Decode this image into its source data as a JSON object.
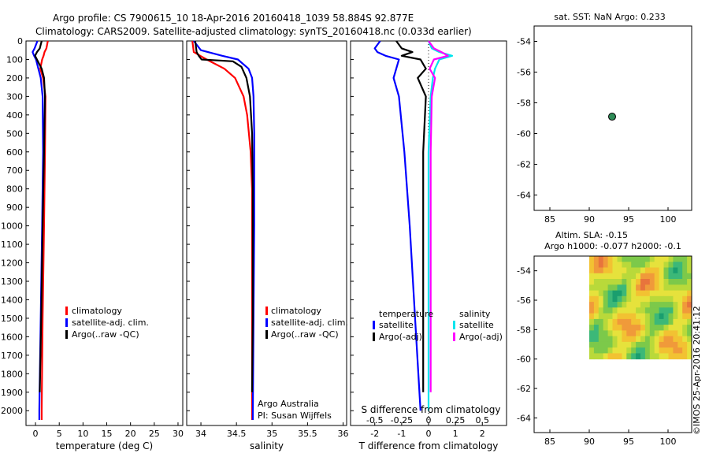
{
  "header": {
    "line1": "Argo profile: CS 7900615_10 18-Apr-2016 20160418_1039 58.884S 92.877E",
    "line2": "Climatology: CARS2009. Satellite-adjusted climatology: synTS_20160418.nc (0.033d earlier)"
  },
  "colors": {
    "climatology": "#ff0000",
    "satellite": "#0000ff",
    "argo": "#000000",
    "sst_satellite": "#00e5ee",
    "salinity_argo": "#ff00ff",
    "marker": "#2e8b57"
  },
  "footer": {
    "attribution": "Argo Australia",
    "pi": "PI: Susan Wijffels",
    "stamp": "©IMOS 25-Apr-2016 20:41:12"
  },
  "chart_data": [
    {
      "id": "temperature",
      "type": "line",
      "xlabel": "temperature (deg C)",
      "ylabel": "",
      "xlim": [
        -2,
        31
      ],
      "ylim": [
        2080,
        0
      ],
      "xticks": [
        0,
        5,
        10,
        15,
        20,
        25,
        30
      ],
      "yticks": [
        0,
        100,
        200,
        300,
        400,
        500,
        600,
        700,
        800,
        900,
        1000,
        1100,
        1200,
        1300,
        1400,
        1500,
        1600,
        1700,
        1800,
        1900,
        2000
      ],
      "legend": [
        "climatology",
        "satellite-adj. clim.",
        "Argo(..raw -QC)"
      ],
      "legend_position": "lower-center",
      "series": [
        {
          "name": "climatology",
          "depth": [
            0,
            40,
            60,
            80,
            100,
            150,
            200,
            300,
            600,
            1000,
            1500,
            2000,
            2050
          ],
          "values": [
            2.6,
            2.3,
            1.9,
            1.7,
            1.4,
            1.0,
            1.6,
            2.1,
            2.0,
            1.8,
            1.5,
            1.3,
            1.3
          ]
        },
        {
          "name": "satellite-adj. clim.",
          "depth": [
            0,
            40,
            60,
            80,
            100,
            150,
            200,
            300,
            600,
            1000,
            1500,
            2000,
            2050
          ],
          "values": [
            0.4,
            -0.2,
            -0.6,
            -0.3,
            0.1,
            0.6,
            1.1,
            1.5,
            1.6,
            1.4,
            1.1,
            0.8,
            0.8
          ]
        },
        {
          "name": "Argo(..raw -QC)",
          "depth": [
            0,
            40,
            60,
            80,
            100,
            150,
            200,
            300,
            600,
            1000,
            1500,
            1900
          ],
          "values": [
            1.3,
            0.9,
            0.3,
            -0.1,
            0.3,
            1.3,
            1.8,
            2.0,
            1.8,
            1.5,
            1.2,
            0.9
          ]
        }
      ]
    },
    {
      "id": "salinity",
      "type": "line",
      "xlabel": "salinity",
      "ylabel": "",
      "xlim": [
        33.8,
        36.05
      ],
      "ylim": [
        2080,
        0
      ],
      "xticks": [
        34,
        34.5,
        35,
        35.5,
        36
      ],
      "xticklabels": [
        "34",
        "34.5",
        "35",
        "35.5",
        "36"
      ],
      "legend": [
        "climatology",
        "satellite-adj. clim.",
        "Argo(..raw -QC)"
      ],
      "legend_position": "lower-right",
      "series": [
        {
          "name": "climatology",
          "depth": [
            0,
            60,
            100,
            150,
            200,
            300,
            400,
            600,
            800,
            1000,
            1500,
            2050
          ],
          "values": [
            33.88,
            33.9,
            34.08,
            34.33,
            34.48,
            34.6,
            34.65,
            34.7,
            34.72,
            34.72,
            34.72,
            34.72
          ]
        },
        {
          "name": "satellite-adj. clim.",
          "depth": [
            0,
            50,
            80,
            100,
            150,
            200,
            300,
            500,
            800,
            1000,
            1500,
            2050
          ],
          "values": [
            33.9,
            34.0,
            34.3,
            34.52,
            34.67,
            34.72,
            34.74,
            34.75,
            34.75,
            34.75,
            34.74,
            34.73
          ]
        },
        {
          "name": "Argo(..raw -QC)",
          "depth": [
            0,
            60,
            80,
            100,
            110,
            140,
            200,
            300,
            500,
            800,
            1000,
            1500,
            1900
          ],
          "values": [
            33.92,
            33.94,
            33.97,
            34.01,
            34.45,
            34.57,
            34.64,
            34.69,
            34.72,
            34.73,
            34.73,
            34.73,
            34.72
          ]
        }
      ]
    },
    {
      "id": "difference",
      "type": "line",
      "xlabel": "T difference from climatology",
      "secondary_xlabel": "S difference from climatology",
      "xlim": [
        -2.9,
        2.9
      ],
      "xticks": [
        -2,
        -1,
        0,
        1,
        2
      ],
      "secondary_xticks": [
        -0.5,
        -0.25,
        0,
        0.25,
        0.5
      ],
      "secondary_xticklabels": [
        "-0.5",
        "-0.25",
        "0",
        "0.25",
        "0.5"
      ],
      "ylim": [
        2080,
        0
      ],
      "legend_titles": [
        "temperature",
        "salinity"
      ],
      "legend": [
        "satellite",
        "Argo(-adj)",
        "satellite",
        "Argo(-adj)"
      ],
      "legend_position": "lower-center",
      "series": [
        {
          "name": "temperature satellite",
          "depth": [
            0,
            40,
            60,
            80,
            100,
            150,
            200,
            300,
            600,
            1000,
            1500,
            2000
          ],
          "values": [
            -1.8,
            -2.0,
            -1.9,
            -1.6,
            -1.1,
            -1.2,
            -1.3,
            -1.1,
            -0.9,
            -0.7,
            -0.5,
            -0.3
          ]
        },
        {
          "name": "temperature Argo(-adj)",
          "depth": [
            0,
            40,
            60,
            80,
            100,
            150,
            200,
            300,
            600,
            1000,
            1500,
            1900
          ],
          "values": [
            -1.2,
            -1.0,
            -0.6,
            -1.0,
            -0.3,
            -0.1,
            -0.4,
            -0.1,
            -0.2,
            -0.2,
            -0.2,
            -0.2
          ]
        },
        {
          "name": "salinity satellite",
          "depth": [
            0,
            40,
            60,
            80,
            100,
            150,
            200,
            300,
            600,
            1000,
            1500,
            2000
          ],
          "values": [
            0.0,
            0.03,
            0.1,
            0.22,
            0.1,
            0.06,
            0.04,
            0.02,
            0.0,
            0.0,
            0.0,
            0.0
          ]
        },
        {
          "name": "salinity Argo(-adj)",
          "depth": [
            0,
            40,
            60,
            80,
            100,
            150,
            200,
            300,
            600,
            1000,
            1500,
            1900
          ],
          "values": [
            0.0,
            0.05,
            0.12,
            0.18,
            0.05,
            0.01,
            0.06,
            0.03,
            0.02,
            0.02,
            0.02,
            0.02
          ]
        }
      ]
    },
    {
      "id": "sst_map",
      "type": "scatter",
      "title": "sat. SST: NaN  Argo: 0.233",
      "xlim": [
        83,
        103
      ],
      "ylim": [
        -65,
        -53
      ],
      "xticks": [
        85,
        90,
        95,
        100
      ],
      "yticks": [
        -54,
        -56,
        -58,
        -60,
        -62,
        -64
      ],
      "points": [
        {
          "lon": 92.9,
          "lat": -58.9
        }
      ]
    },
    {
      "id": "sla_map",
      "type": "heatmap",
      "title_line1": "Altim. SLA: -0.15",
      "title_line2": "Argo h1000: -0.077 h2000: -0.1",
      "xlim": [
        83,
        103
      ],
      "ylim": [
        -65,
        -53
      ],
      "xticks": [
        85,
        90,
        95,
        100
      ],
      "yticks": [
        -54,
        -56,
        -58,
        -60,
        -62,
        -64
      ],
      "data_extent": {
        "lon": [
          90,
          103
        ],
        "lat": [
          -60,
          -53
        ]
      }
    }
  ]
}
